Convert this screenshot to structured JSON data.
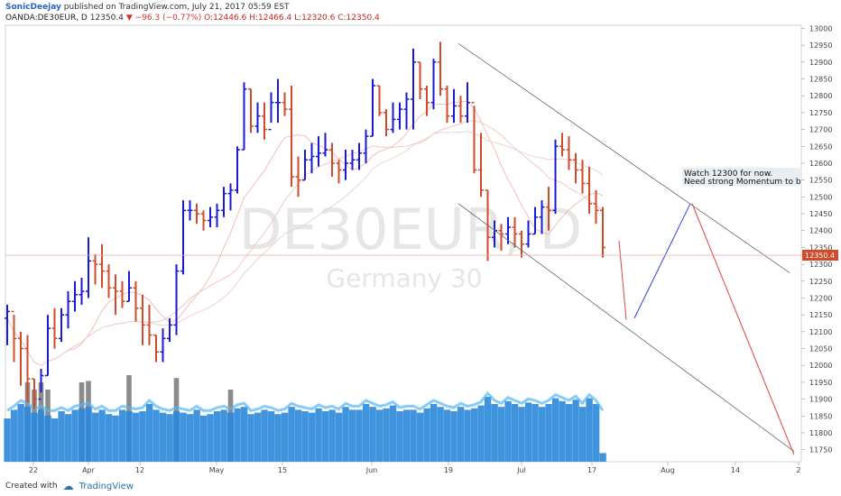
{
  "header": {
    "author": "SonicDeejay",
    "published": "published on TradingView.com, July 21, 2017 05:59 EST",
    "symbol": "OANDA:DE30EUR, D",
    "price": "12350.4",
    "change": "−96.3 (−0.77%)",
    "ohlc_o": "O:12446.6",
    "ohlc_h": "H:12466.4",
    "ohlc_l": "L:12320.6",
    "ohlc_c": "C:12350.4"
  },
  "watermark": {
    "main": "DE30EUR, D",
    "sub": "Germany 30"
  },
  "annotation": {
    "line1": "Watch 12300 for now.",
    "line2": "Need strong Momentum to b"
  },
  "footer": {
    "created_with": "Created with",
    "brand": "TradingView"
  },
  "colors": {
    "up": "#1a1ad6",
    "down": "#d24a2a",
    "volume_up": "#2b87d9",
    "volume_down": "#777777",
    "price_label": "#d24a2a"
  },
  "chart_data": {
    "type": "ohlc-bar",
    "y_axis_ticks": [
      13000,
      12950,
      12900,
      12850,
      12800,
      12750,
      12700,
      12650,
      12600,
      12550,
      12500,
      12450,
      12400,
      12350,
      12300,
      12250,
      12200,
      12150,
      12100,
      12050,
      12000,
      11950,
      11900,
      11850,
      11800,
      11750
    ],
    "ylim": [
      11725,
      13020
    ],
    "x_tick_labels": [
      "22",
      "Apr",
      "12",
      "May",
      "15",
      "Jun",
      "19",
      "Jul",
      "17",
      "Aug",
      "14",
      "2"
    ],
    "last_price_label": "12350.4",
    "bars": [
      [
        12180,
        12060,
        12160
      ],
      [
        12150,
        12010,
        12080
      ],
      [
        12100,
        11940,
        12050
      ],
      [
        12090,
        11890,
        11960
      ],
      [
        11960,
        11870,
        11900
      ],
      [
        11990,
        11920,
        11970
      ],
      [
        12150,
        11970,
        12110
      ],
      [
        12170,
        12050,
        12080
      ],
      [
        12170,
        12070,
        12150
      ],
      [
        12220,
        12110,
        12190
      ],
      [
        12250,
        12160,
        12210
      ],
      [
        12260,
        12180,
        12220
      ],
      [
        12380,
        12200,
        12310
      ],
      [
        12330,
        12240,
        12300
      ],
      [
        12360,
        12230,
        12280
      ],
      [
        12300,
        12200,
        12230
      ],
      [
        12270,
        12150,
        12220
      ],
      [
        12250,
        12170,
        12190
      ],
      [
        12280,
        12190,
        12230
      ],
      [
        12250,
        12130,
        12170
      ],
      [
        12210,
        12060,
        12120
      ],
      [
        12180,
        12060,
        12090
      ],
      [
        12090,
        12010,
        12040
      ],
      [
        12110,
        12010,
        12080
      ],
      [
        12140,
        12070,
        12120
      ],
      [
        12300,
        12090,
        12280
      ],
      [
        12490,
        12270,
        12460
      ],
      [
        12490,
        12430,
        12460
      ],
      [
        12480,
        12420,
        12450
      ],
      [
        12460,
        12400,
        12430
      ],
      [
        12470,
        12410,
        12440
      ],
      [
        12480,
        12410,
        12460
      ],
      [
        12530,
        12440,
        12510
      ],
      [
        12540,
        12460,
        12520
      ],
      [
        12650,
        12510,
        12640
      ],
      [
        12840,
        12640,
        12820
      ],
      [
        12820,
        12690,
        12710
      ],
      [
        12780,
        12690,
        12740
      ],
      [
        12780,
        12670,
        12700
      ],
      [
        12810,
        12720,
        12780
      ],
      [
        12850,
        12720,
        12780
      ],
      [
        12810,
        12740,
        12760
      ],
      [
        12830,
        12530,
        12560
      ],
      [
        12620,
        12500,
        12550
      ],
      [
        12640,
        12550,
        12610
      ],
      [
        12660,
        12570,
        12620
      ],
      [
        12680,
        12590,
        12630
      ],
      [
        12690,
        12620,
        12640
      ],
      [
        12660,
        12560,
        12600
      ],
      [
        12610,
        12540,
        12580
      ],
      [
        12640,
        12550,
        12600
      ],
      [
        12640,
        12580,
        12610
      ],
      [
        12660,
        12580,
        12630
      ],
      [
        12700,
        12600,
        12680
      ],
      [
        12850,
        12680,
        12830
      ],
      [
        12830,
        12740,
        12750
      ],
      [
        12760,
        12680,
        12700
      ],
      [
        12780,
        12690,
        12730
      ],
      [
        12780,
        12700,
        12760
      ],
      [
        12810,
        12700,
        12790
      ],
      [
        12940,
        12700,
        12900
      ],
      [
        12900,
        12790,
        12820
      ],
      [
        12830,
        12740,
        12780
      ],
      [
        12910,
        12760,
        12900
      ],
      [
        12960,
        12800,
        12820
      ],
      [
        12830,
        12720,
        12740
      ],
      [
        12820,
        12720,
        12770
      ],
      [
        12800,
        12720,
        12740
      ],
      [
        12840,
        12720,
        12780
      ],
      [
        12770,
        12570,
        12580
      ],
      [
        12690,
        12500,
        12520
      ],
      [
        12520,
        12310,
        12380
      ],
      [
        12430,
        12350,
        12400
      ],
      [
        12420,
        12340,
        12390
      ],
      [
        12440,
        12360,
        12410
      ],
      [
        12440,
        12350,
        12390
      ],
      [
        12400,
        12320,
        12360
      ],
      [
        12430,
        12350,
        12390
      ],
      [
        12470,
        12390,
        12440
      ],
      [
        12490,
        12390,
        12470
      ],
      [
        12530,
        12400,
        12460
      ],
      [
        12670,
        12450,
        12650
      ],
      [
        12690,
        12620,
        12640
      ],
      [
        12680,
        12580,
        12610
      ],
      [
        12630,
        12540,
        12580
      ],
      [
        12610,
        12510,
        12540
      ],
      [
        12590,
        12450,
        12480
      ],
      [
        12520,
        12420,
        12460
      ],
      [
        12470,
        12320,
        12350
      ]
    ],
    "volumes": [
      0.3,
      0.36,
      0.4,
      0.38,
      0.34,
      0.36,
      0.32,
      0.3,
      0.35,
      0.33,
      0.36,
      0.37,
      0.38,
      0.34,
      0.36,
      0.33,
      0.32,
      0.36,
      0.35,
      0.34,
      0.35,
      0.4,
      0.36,
      0.34,
      0.33,
      0.35,
      0.34,
      0.33,
      0.36,
      0.32,
      0.33,
      0.35,
      0.36,
      0.34,
      0.37,
      0.38,
      0.33,
      0.34,
      0.36,
      0.35,
      0.33,
      0.34,
      0.38,
      0.36,
      0.35,
      0.34,
      0.37,
      0.35,
      0.36,
      0.34,
      0.38,
      0.36,
      0.36,
      0.4,
      0.38,
      0.36,
      0.37,
      0.39,
      0.35,
      0.36,
      0.36,
      0.34,
      0.37,
      0.4,
      0.38,
      0.36,
      0.35,
      0.38,
      0.36,
      0.37,
      0.39,
      0.45,
      0.4,
      0.38,
      0.42,
      0.4,
      0.38,
      0.41,
      0.4,
      0.38,
      0.4,
      0.44,
      0.42,
      0.4,
      0.43,
      0.38,
      0.44,
      0.4,
      0.06
    ],
    "volume_spikes": [
      0,
      0,
      0,
      0.55,
      0.5,
      0.55,
      0.5,
      0,
      0,
      0,
      0,
      0.55,
      0.56,
      0,
      0,
      0,
      0,
      0,
      0.6,
      0,
      0,
      0,
      0,
      0,
      0,
      0.58,
      0,
      0,
      0,
      0,
      0,
      0,
      0,
      0.5,
      0,
      0,
      0,
      0,
      0,
      0,
      0,
      0,
      0,
      0,
      0,
      0,
      0,
      0,
      0,
      0,
      0,
      0,
      0,
      0,
      0,
      0,
      0,
      0,
      0,
      0,
      0,
      0,
      0,
      0,
      0,
      0,
      0,
      0,
      0,
      0,
      0,
      0,
      0,
      0,
      0,
      0,
      0,
      0,
      0,
      0,
      0,
      0,
      0,
      0,
      0,
      0,
      0,
      0,
      0
    ]
  }
}
